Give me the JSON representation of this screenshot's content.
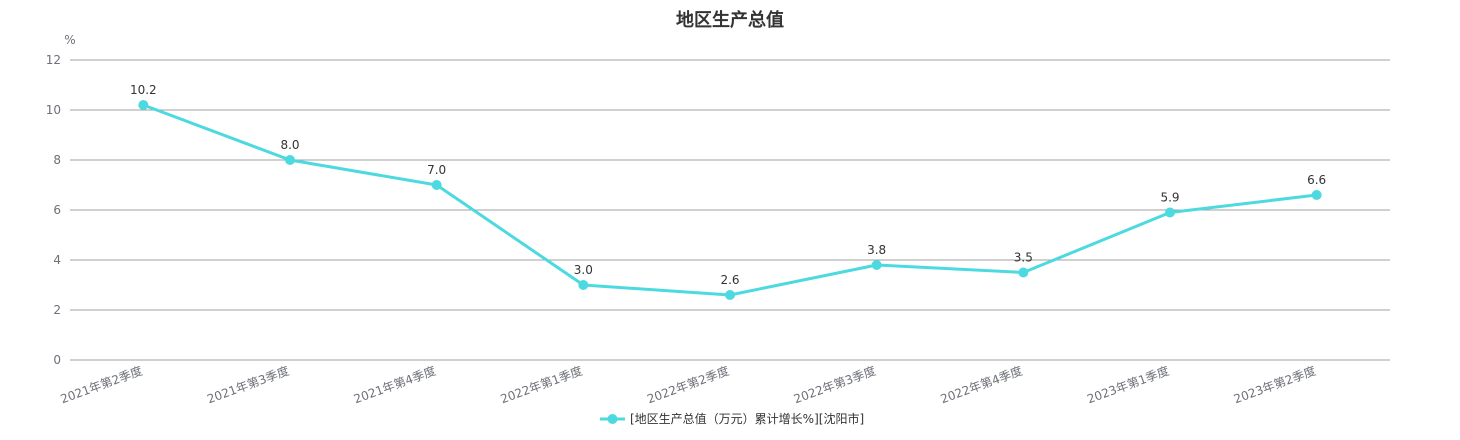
{
  "chart_data": {
    "type": "line",
    "title": "地区生产总值",
    "y_unit": "%",
    "ylim": [
      0,
      12
    ],
    "yticks": [
      0,
      2,
      4,
      6,
      8,
      10,
      12
    ],
    "grid": true,
    "legend_position": "bottom-center",
    "categories": [
      "2021年第2季度",
      "2021年第3季度",
      "2021年第4季度",
      "2022年第1季度",
      "2022年第2季度",
      "2022年第3季度",
      "2022年第4季度",
      "2023年第1季度",
      "2023年第2季度"
    ],
    "series": [
      {
        "name": "[地区生产总值（万元）累计增长%][沈阳市]",
        "color": "#4dd9e0",
        "values": [
          10.2,
          8.0,
          7.0,
          3.0,
          2.6,
          3.8,
          3.5,
          5.9,
          6.6
        ],
        "labels": [
          "10.2",
          "8.0",
          "7.0",
          "3.0",
          "2.6",
          "3.8",
          "3.5",
          "5.9",
          "6.6"
        ]
      }
    ]
  }
}
